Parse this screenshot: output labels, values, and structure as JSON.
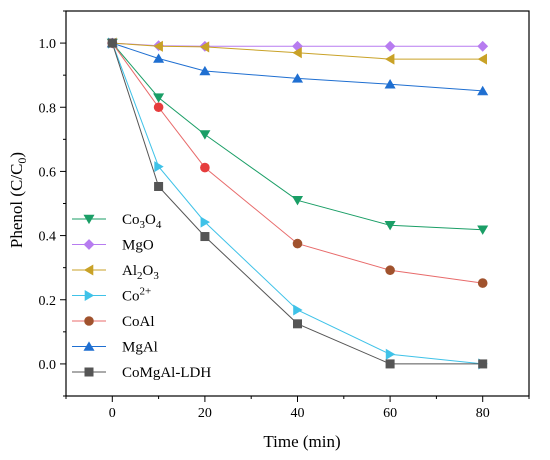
{
  "chart_data": {
    "type": "line",
    "title": "",
    "xlabel": "Time (min)",
    "ylabel_main": "Phenol (C/C",
    "ylabel_sub": "0",
    "ylabel_close": ")",
    "xlim": [
      -10,
      90
    ],
    "ylim": [
      -0.1,
      1.1
    ],
    "xticks": [
      0,
      20,
      40,
      60,
      80
    ],
    "xtick_labels": [
      "0",
      "20",
      "40",
      "60",
      "80"
    ],
    "yticks": [
      0.0,
      0.2,
      0.4,
      0.6,
      0.8,
      1.0
    ],
    "ytick_labels": [
      "0.0",
      "0.2",
      "0.4",
      "0.6",
      "0.8",
      "1.0"
    ],
    "grid": false,
    "legend_position": "bottom-left",
    "series": [
      {
        "key": "co3o4",
        "name": "Co3O4",
        "label_parts": [
          [
            "Co",
            "n"
          ],
          [
            "3",
            "sub"
          ],
          [
            "O",
            "n"
          ],
          [
            "4",
            "sub"
          ]
        ],
        "marker": "triangle-down",
        "color": "#1a9e66",
        "x": [
          0,
          10,
          20,
          40,
          60,
          80
        ],
        "y": [
          1.0,
          0.83,
          0.715,
          0.51,
          0.432,
          0.418
        ]
      },
      {
        "key": "mgo",
        "name": "MgO",
        "label_parts": [
          [
            "MgO",
            "n"
          ]
        ],
        "marker": "diamond",
        "color": "#b77cf0",
        "x": [
          0,
          10,
          20,
          40,
          60,
          80
        ],
        "y": [
          1.0,
          0.992,
          0.99,
          0.99,
          0.99,
          0.99
        ]
      },
      {
        "key": "al2o3",
        "name": "Al2O3",
        "label_parts": [
          [
            "Al",
            "n"
          ],
          [
            "2",
            "sub"
          ],
          [
            "O",
            "n"
          ],
          [
            "3",
            "sub"
          ]
        ],
        "marker": "triangle-left",
        "color": "#c9a227",
        "x": [
          0,
          10,
          20,
          40,
          60,
          80
        ],
        "y": [
          1.0,
          0.99,
          0.988,
          0.97,
          0.95,
          0.95
        ]
      },
      {
        "key": "co2",
        "name": "Co2+",
        "label_parts": [
          [
            "Co",
            "n"
          ],
          [
            "2+",
            "sup"
          ]
        ],
        "marker": "triangle-right",
        "color": "#3fc2e8",
        "x": [
          0,
          10,
          20,
          40,
          60,
          80
        ],
        "y": [
          1.0,
          0.615,
          0.442,
          0.168,
          0.03,
          0.0
        ]
      },
      {
        "key": "coal",
        "name": "CoAl",
        "label_parts": [
          [
            "CoAl",
            "n"
          ]
        ],
        "marker": "circle",
        "line_color": "#e86b6b",
        "color": "#a0522d",
        "first_point_color": "#e63c3c",
        "x": [
          0,
          10,
          20,
          40,
          60,
          80
        ],
        "y": [
          1.0,
          0.8,
          0.612,
          0.375,
          0.292,
          0.252
        ]
      },
      {
        "key": "mgal",
        "name": "MgAl",
        "label_parts": [
          [
            "MgAl",
            "n"
          ]
        ],
        "marker": "triangle-up",
        "color": "#1f6fd1",
        "x": [
          0,
          10,
          20,
          40,
          60,
          80
        ],
        "y": [
          1.0,
          0.952,
          0.913,
          0.89,
          0.872,
          0.851
        ]
      },
      {
        "key": "comgal",
        "name": "CoMgAl-LDH",
        "label_parts": [
          [
            "CoMgAl-LDH",
            "n"
          ]
        ],
        "marker": "square",
        "color": "#555555",
        "x": [
          0,
          10,
          20,
          40,
          60,
          80
        ],
        "y": [
          1.0,
          0.553,
          0.397,
          0.125,
          0.0,
          0.0
        ]
      }
    ]
  }
}
